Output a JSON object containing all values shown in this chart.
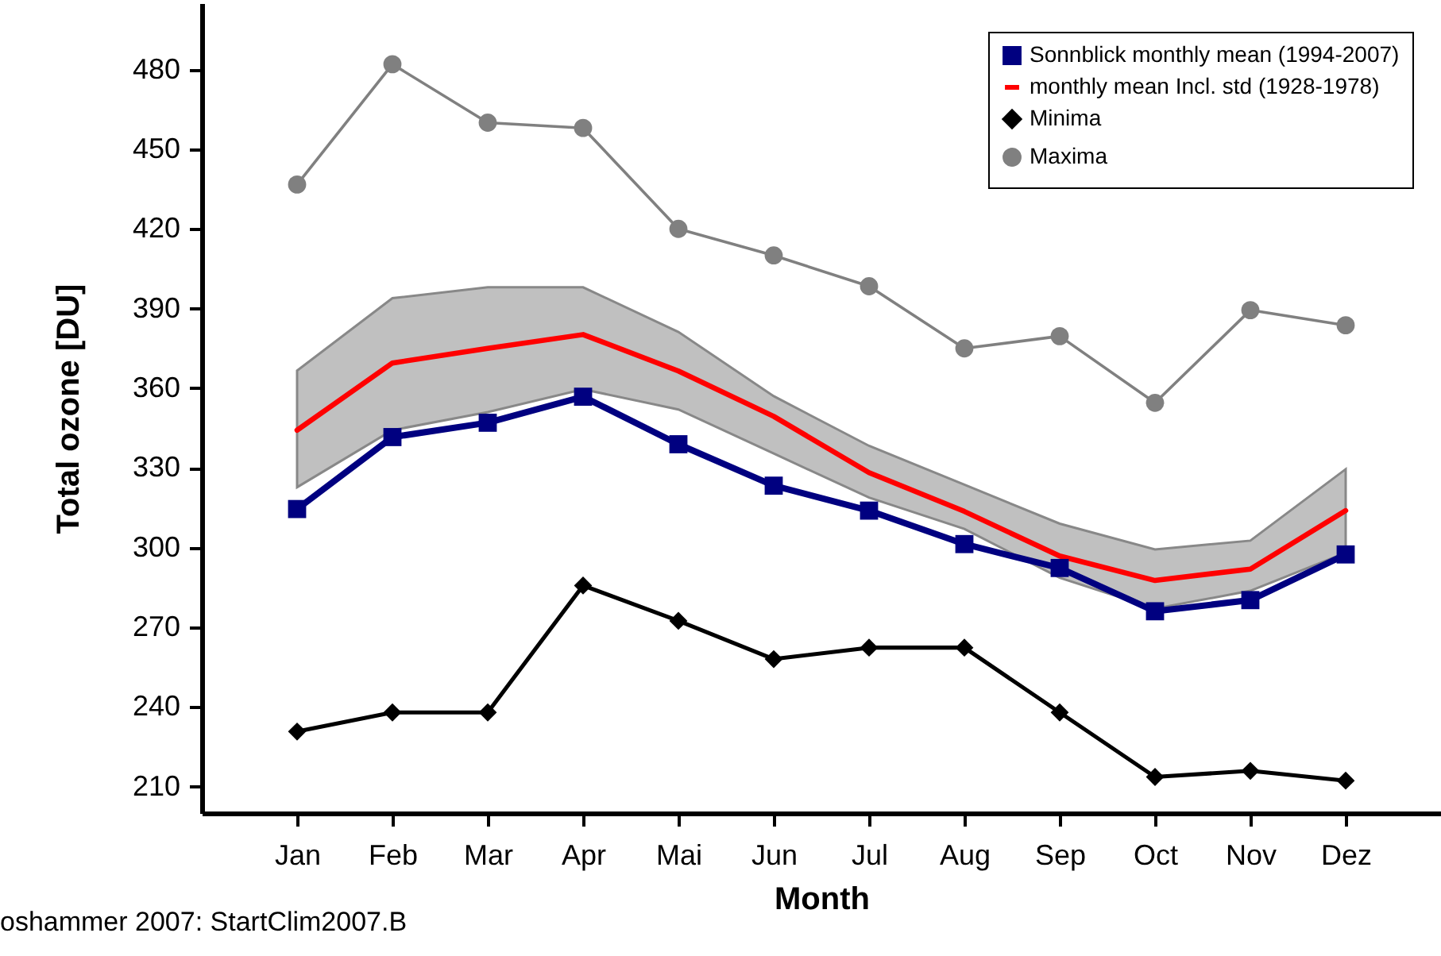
{
  "chart_data": {
    "type": "line",
    "xlabel": "Month",
    "ylabel": "Total ozone [DU]",
    "categories": [
      "Jan",
      "Feb",
      "Mar",
      "Apr",
      "Mai",
      "Jun",
      "Jul",
      "Aug",
      "Sep",
      "Oct",
      "Nov",
      "Dez"
    ],
    "series": [
      {
        "name": "Sonnblick monthly mean (1994-2007)",
        "color": "#000080",
        "marker": "square",
        "values": [
          314.5,
          341.6,
          347,
          356.8,
          338.9,
          323.3,
          313.9,
          301.3,
          292.3,
          276,
          280.2,
          297.4
        ]
      },
      {
        "name": "monthly mean Incl. std (1928-1978)",
        "color": "#ff0000",
        "marker": "none",
        "values": [
          344.2,
          369.5,
          375,
          380.2,
          366.5,
          349.4,
          328.2,
          313.6,
          296.8,
          287.6,
          291.9,
          313.9
        ],
        "lower": [
          322.7,
          344.2,
          351,
          359.6,
          352,
          335.4,
          318.8,
          307,
          288.6,
          277,
          283.7,
          298
        ],
        "upper": [
          366.6,
          393.9,
          398,
          398,
          381.2,
          357,
          338.3,
          323.7,
          309,
          299.3,
          302.6,
          329.5
        ]
      },
      {
        "name": "Minima",
        "color": "#000000",
        "marker": "diamond",
        "values": [
          230.7,
          237.9,
          237.9,
          285.7,
          272.4,
          258,
          262.3,
          262.3,
          237.9,
          213.6,
          215.9,
          212.2
        ]
      },
      {
        "name": "Maxima",
        "color": "#808080",
        "marker": "circle",
        "values": [
          436.7,
          482,
          460,
          458,
          420,
          410,
          398.4,
          375,
          379.6,
          354.5,
          389.4,
          383.7
        ]
      }
    ],
    "ylim": [
      200,
      505
    ],
    "yticks": [
      210,
      240,
      270,
      300,
      330,
      360,
      390,
      420,
      450,
      480
    ],
    "grid": false,
    "legend": "top right",
    "line_style": "solid",
    "annotations": [
      "oshammer 2007: StartClim2007.B"
    ]
  }
}
